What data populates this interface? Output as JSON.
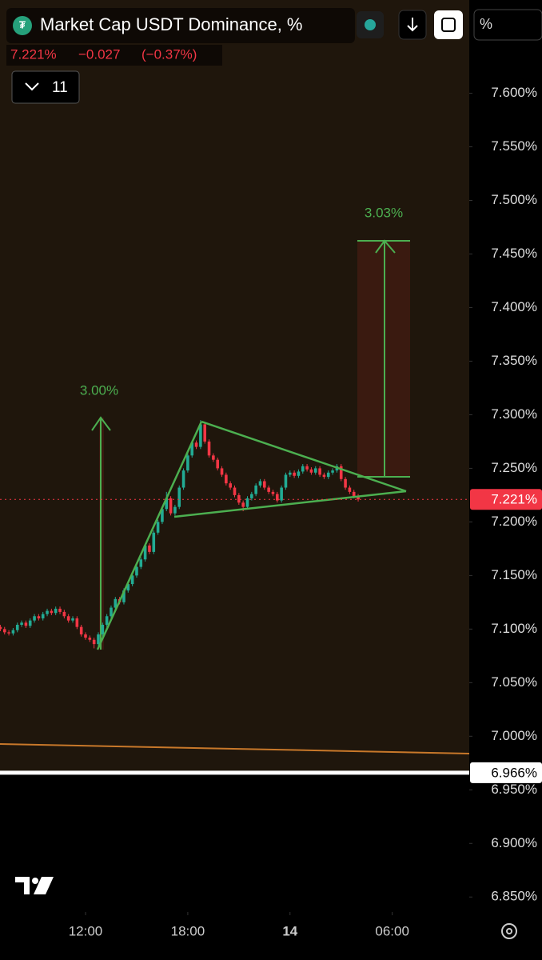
{
  "header": {
    "title": "Market Cap USDT Dominance, %",
    "last": "7.221%",
    "change": "−0.027",
    "change_pct": "(−0.37%)",
    "indicators_count": "11",
    "scale_button": "%"
  },
  "chart_data": {
    "type": "candlestick",
    "open": [
      7.102,
      7.1,
      7.097,
      7.096,
      7.099,
      7.104,
      7.106,
      7.103,
      7.108,
      7.112,
      7.11,
      7.114,
      7.117,
      7.115,
      7.119,
      7.116,
      7.112,
      7.108,
      7.11,
      7.102,
      7.095,
      7.092,
      7.09,
      7.086,
      7.095,
      7.104,
      7.112,
      7.12,
      7.128,
      7.125,
      7.136,
      7.142,
      7.15,
      7.158,
      7.165,
      7.178,
      7.172,
      7.19,
      7.2,
      7.212,
      7.222,
      7.208,
      7.214,
      7.232,
      7.248,
      7.262,
      7.274,
      7.27,
      7.291,
      7.275,
      7.262,
      7.258,
      7.25,
      7.244,
      7.236,
      7.232,
      7.225,
      7.218,
      7.214,
      7.222,
      7.226,
      7.234,
      7.238,
      7.232,
      7.228,
      7.226,
      7.22,
      7.232,
      7.244,
      7.246,
      7.243,
      7.247,
      7.252,
      7.249,
      7.246,
      7.25,
      7.244,
      7.242,
      7.246,
      7.248,
      7.252,
      7.24,
      7.232,
      7.228,
      7.224
    ],
    "high": [
      7.104,
      7.102,
      7.099,
      7.101,
      7.106,
      7.108,
      7.108,
      7.11,
      7.114,
      7.114,
      7.116,
      7.119,
      7.119,
      7.121,
      7.121,
      7.118,
      7.114,
      7.112,
      7.112,
      7.104,
      7.097,
      7.094,
      7.092,
      7.097,
      7.106,
      7.114,
      7.122,
      7.13,
      7.13,
      7.138,
      7.144,
      7.152,
      7.16,
      7.167,
      7.18,
      7.18,
      7.192,
      7.202,
      7.214,
      7.228,
      7.224,
      7.216,
      7.234,
      7.25,
      7.264,
      7.276,
      7.276,
      7.295,
      7.293,
      7.277,
      7.264,
      7.26,
      7.252,
      7.246,
      7.238,
      7.234,
      7.227,
      7.22,
      7.224,
      7.228,
      7.236,
      7.24,
      7.24,
      7.234,
      7.23,
      7.228,
      7.234,
      7.246,
      7.248,
      7.248,
      7.249,
      7.254,
      7.254,
      7.251,
      7.252,
      7.252,
      7.246,
      7.248,
      7.25,
      7.254,
      7.254,
      7.242,
      7.234,
      7.23,
      7.226
    ],
    "low": [
      7.098,
      7.095,
      7.094,
      7.094,
      7.097,
      7.102,
      7.101,
      7.101,
      7.106,
      7.108,
      7.108,
      7.112,
      7.113,
      7.113,
      7.114,
      7.11,
      7.106,
      7.106,
      7.1,
      7.093,
      7.09,
      7.088,
      7.082,
      7.084,
      7.093,
      7.102,
      7.11,
      7.118,
      7.123,
      7.123,
      7.134,
      7.14,
      7.148,
      7.156,
      7.163,
      7.17,
      7.17,
      7.188,
      7.198,
      7.21,
      7.206,
      7.206,
      7.212,
      7.23,
      7.246,
      7.26,
      7.268,
      7.268,
      7.273,
      7.26,
      7.256,
      7.248,
      7.242,
      7.234,
      7.23,
      7.223,
      7.216,
      7.21,
      7.212,
      7.22,
      7.224,
      7.232,
      7.23,
      7.226,
      7.224,
      7.218,
      7.218,
      7.23,
      7.242,
      7.241,
      7.241,
      7.245,
      7.247,
      7.244,
      7.244,
      7.242,
      7.24,
      7.24,
      7.244,
      7.246,
      7.238,
      7.23,
      7.226,
      7.222,
      7.219
    ],
    "close": [
      7.1,
      7.097,
      7.096,
      7.099,
      7.104,
      7.106,
      7.103,
      7.108,
      7.112,
      7.11,
      7.114,
      7.117,
      7.115,
      7.119,
      7.116,
      7.112,
      7.108,
      7.11,
      7.102,
      7.095,
      7.092,
      7.09,
      7.086,
      7.095,
      7.104,
      7.112,
      7.12,
      7.128,
      7.125,
      7.136,
      7.142,
      7.15,
      7.158,
      7.165,
      7.178,
      7.172,
      7.19,
      7.2,
      7.212,
      7.222,
      7.208,
      7.214,
      7.232,
      7.248,
      7.262,
      7.274,
      7.27,
      7.291,
      7.275,
      7.262,
      7.258,
      7.25,
      7.244,
      7.236,
      7.232,
      7.225,
      7.218,
      7.214,
      7.222,
      7.226,
      7.234,
      7.238,
      7.232,
      7.228,
      7.226,
      7.22,
      7.232,
      7.244,
      7.246,
      7.243,
      7.247,
      7.252,
      7.249,
      7.246,
      7.25,
      7.244,
      7.242,
      7.246,
      7.248,
      7.252,
      7.24,
      7.232,
      7.228,
      7.224,
      7.221
    ],
    "up_color": "#22ab94",
    "down_color": "#f23645",
    "ylim": [
      6.836,
      7.687
    ],
    "yticks": [
      {
        "value": 6.85,
        "label": "6.850%"
      },
      {
        "value": 6.9,
        "label": "6.900%"
      },
      {
        "value": 6.95,
        "label": "6.950%"
      },
      {
        "value": 7.0,
        "label": "7.000%"
      },
      {
        "value": 7.05,
        "label": "7.050%"
      },
      {
        "value": 7.1,
        "label": "7.100%"
      },
      {
        "value": 7.15,
        "label": "7.150%"
      },
      {
        "value": 7.2,
        "label": "7.200%"
      },
      {
        "value": 7.25,
        "label": "7.250%"
      },
      {
        "value": 7.3,
        "label": "7.300%"
      },
      {
        "value": 7.35,
        "label": "7.350%"
      },
      {
        "value": 7.4,
        "label": "7.400%"
      },
      {
        "value": 7.45,
        "label": "7.450%"
      },
      {
        "value": 7.5,
        "label": "7.500%"
      },
      {
        "value": 7.55,
        "label": "7.550%"
      },
      {
        "value": 7.6,
        "label": "7.600%"
      }
    ],
    "xlim": [
      -0.08,
      109.7
    ],
    "xticks": [
      {
        "value": 20,
        "label": "12:00"
      },
      {
        "value": 44,
        "label": "18:00"
      },
      {
        "value": 68,
        "label": "14"
      },
      {
        "value": 92,
        "label": "06:00"
      }
    ],
    "last_price": {
      "value": 7.221,
      "label": "7.221%"
    },
    "level_line": {
      "value": 6.966,
      "label": "6.966%"
    },
    "annotations": [
      "3.00%",
      "3.03%"
    ]
  }
}
